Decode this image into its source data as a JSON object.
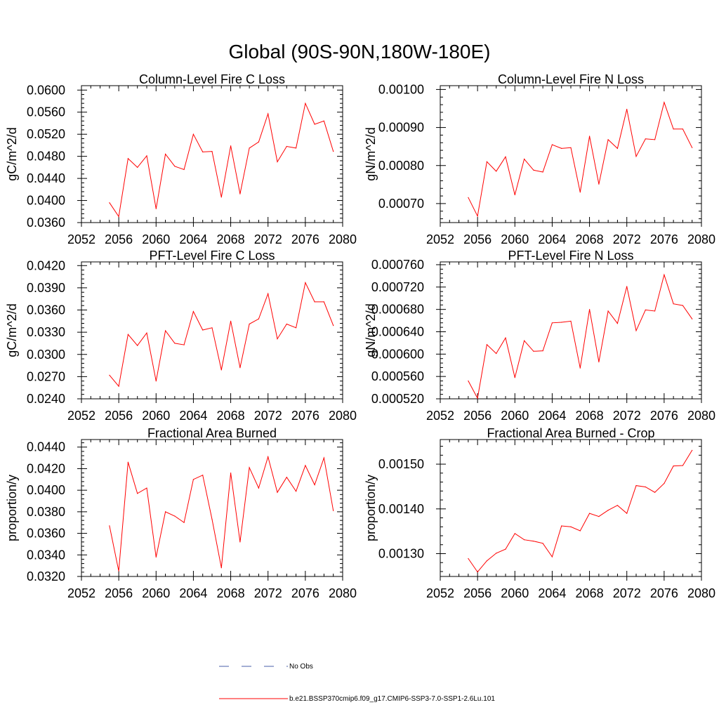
{
  "title": "Global (90S-90N,180W-180E)",
  "colors": {
    "series": "#ff0000",
    "obs": "#4a5ea8",
    "axis": "#000000"
  },
  "legend": {
    "obs_label": "No Obs",
    "model_label": "b.e21.BSSP370cmip6.f09_g17.CMIP6-SSP3-7.0-SSP1-2.6Lu.101"
  },
  "chart_data": [
    {
      "type": "line",
      "title": "Column-Level Fire C Loss",
      "ylabel": "gC/m^2/d",
      "xlim": [
        2052,
        2080
      ],
      "ylim": [
        0.036,
        0.0608
      ],
      "xticks": [
        2052,
        2056,
        2060,
        2064,
        2068,
        2072,
        2076,
        2080
      ],
      "yticks": [
        0.036,
        0.04,
        0.044,
        0.048,
        0.052,
        0.056,
        0.06
      ],
      "yticklabels": [
        "0.0360",
        "0.0400",
        "0.0440",
        "0.0480",
        "0.0520",
        "0.0560",
        "0.0600"
      ],
      "x": [
        2055,
        2056,
        2057,
        2058,
        2059,
        2060,
        2061,
        2062,
        2063,
        2064,
        2065,
        2066,
        2067,
        2068,
        2069,
        2070,
        2071,
        2072,
        2073,
        2074,
        2075,
        2076,
        2077,
        2078,
        2079
      ],
      "values": [
        0.0396,
        0.0371,
        0.0476,
        0.046,
        0.0481,
        0.0385,
        0.0484,
        0.0462,
        0.0456,
        0.052,
        0.0488,
        0.0489,
        0.0406,
        0.0499,
        0.0412,
        0.0495,
        0.0506,
        0.0557,
        0.047,
        0.0498,
        0.0495,
        0.0576,
        0.0538,
        0.0544,
        0.0489
      ]
    },
    {
      "type": "line",
      "title": "Column-Level Fire N Loss",
      "ylabel": "gN/m^2/d",
      "xlim": [
        2052,
        2080
      ],
      "ylim": [
        0.00065,
        0.00101
      ],
      "xticks": [
        2052,
        2056,
        2060,
        2064,
        2068,
        2072,
        2076,
        2080
      ],
      "yticks": [
        0.0007,
        0.0008,
        0.0009,
        0.001
      ],
      "yticklabels": [
        "0.00070",
        "0.00080",
        "0.00090",
        "0.00100"
      ],
      "x": [
        2055,
        2056,
        2057,
        2058,
        2059,
        2060,
        2061,
        2062,
        2063,
        2064,
        2065,
        2066,
        2067,
        2068,
        2069,
        2070,
        2071,
        2072,
        2073,
        2074,
        2075,
        2076,
        2077,
        2078,
        2079
      ],
      "values": [
        0.000716,
        0.000667,
        0.00081,
        0.000785,
        0.000823,
        0.000723,
        0.000817,
        0.000788,
        0.000783,
        0.000855,
        0.000845,
        0.000847,
        0.00073,
        0.000877,
        0.000751,
        0.000868,
        0.000845,
        0.000948,
        0.000824,
        0.00087,
        0.000868,
        0.000966,
        0.000896,
        0.000896,
        0.000847
      ]
    },
    {
      "type": "line",
      "title": "PFT-Level Fire C Loss",
      "ylabel": "gC/m^2/d",
      "xlim": [
        2052,
        2080
      ],
      "ylim": [
        0.024,
        0.0425
      ],
      "xticks": [
        2052,
        2056,
        2060,
        2064,
        2068,
        2072,
        2076,
        2080
      ],
      "yticks": [
        0.024,
        0.027,
        0.03,
        0.033,
        0.036,
        0.039,
        0.042
      ],
      "yticklabels": [
        "0.0240",
        "0.0270",
        "0.0300",
        "0.0330",
        "0.0360",
        "0.0390",
        "0.0420"
      ],
      "x": [
        2055,
        2056,
        2057,
        2058,
        2059,
        2060,
        2061,
        2062,
        2063,
        2064,
        2065,
        2066,
        2067,
        2068,
        2069,
        2070,
        2071,
        2072,
        2073,
        2074,
        2075,
        2076,
        2077,
        2078,
        2079
      ],
      "values": [
        0.0272,
        0.0257,
        0.0327,
        0.0312,
        0.0329,
        0.0264,
        0.0332,
        0.0315,
        0.0313,
        0.0358,
        0.0333,
        0.0336,
        0.0279,
        0.0345,
        0.0282,
        0.0341,
        0.0348,
        0.0382,
        0.0321,
        0.0341,
        0.0336,
        0.0397,
        0.0371,
        0.0371,
        0.0339
      ]
    },
    {
      "type": "line",
      "title": "PFT-Level Fire N Loss",
      "ylabel": "gN/m^2/d",
      "xlim": [
        2052,
        2080
      ],
      "ylim": [
        0.00052,
        0.000765
      ],
      "xticks": [
        2052,
        2056,
        2060,
        2064,
        2068,
        2072,
        2076,
        2080
      ],
      "yticks": [
        0.00052,
        0.00056,
        0.0006,
        0.00064,
        0.00068,
        0.00072,
        0.00076
      ],
      "yticklabels": [
        "0.000520",
        "0.000560",
        "0.000600",
        "0.000640",
        "0.000680",
        "0.000720",
        "0.000760"
      ],
      "x": [
        2055,
        2056,
        2057,
        2058,
        2059,
        2060,
        2061,
        2062,
        2063,
        2064,
        2065,
        2066,
        2067,
        2068,
        2069,
        2070,
        2071,
        2072,
        2073,
        2074,
        2075,
        2076,
        2077,
        2078,
        2079
      ],
      "values": [
        0.000552,
        0.000521,
        0.000617,
        0.000601,
        0.000629,
        0.000558,
        0.000624,
        0.000605,
        0.000606,
        0.000656,
        0.000657,
        0.000659,
        0.000575,
        0.00068,
        0.000586,
        0.000677,
        0.000655,
        0.000721,
        0.000642,
        0.000679,
        0.000677,
        0.000742,
        0.00069,
        0.000687,
        0.000663
      ]
    },
    {
      "type": "line",
      "title": "Fractional Area Burned",
      "ylabel": "proportion/y",
      "xlim": [
        2052,
        2080
      ],
      "ylim": [
        0.032,
        0.0447
      ],
      "xticks": [
        2052,
        2056,
        2060,
        2064,
        2068,
        2072,
        2076,
        2080
      ],
      "yticks": [
        0.032,
        0.034,
        0.036,
        0.038,
        0.04,
        0.042,
        0.044
      ],
      "yticklabels": [
        "0.0320",
        "0.0340",
        "0.0360",
        "0.0380",
        "0.0400",
        "0.0420",
        "0.0440"
      ],
      "x": [
        2055,
        2056,
        2057,
        2058,
        2059,
        2060,
        2061,
        2062,
        2063,
        2064,
        2065,
        2066,
        2067,
        2068,
        2069,
        2070,
        2071,
        2072,
        2073,
        2074,
        2075,
        2076,
        2077,
        2078,
        2079
      ],
      "values": [
        0.0367,
        0.0325,
        0.0426,
        0.0397,
        0.0402,
        0.0338,
        0.038,
        0.0376,
        0.037,
        0.041,
        0.0414,
        0.0373,
        0.0328,
        0.0416,
        0.0352,
        0.0421,
        0.0402,
        0.0431,
        0.0398,
        0.0412,
        0.0399,
        0.0423,
        0.0405,
        0.043,
        0.0381
      ]
    },
    {
      "type": "line",
      "title": "Fractional Area Burned - Crop",
      "ylabel": "proportion/y",
      "xlim": [
        2052,
        2080
      ],
      "ylim": [
        0.001249,
        0.001555
      ],
      "xticks": [
        2052,
        2056,
        2060,
        2064,
        2068,
        2072,
        2076,
        2080
      ],
      "yticks": [
        0.0013,
        0.0014,
        0.0015
      ],
      "yticklabels": [
        "0.00130",
        "0.00140",
        "0.00150"
      ],
      "x": [
        2055,
        2056,
        2057,
        2058,
        2059,
        2060,
        2061,
        2062,
        2063,
        2064,
        2065,
        2066,
        2067,
        2068,
        2069,
        2070,
        2071,
        2072,
        2073,
        2074,
        2075,
        2076,
        2077,
        2078,
        2079
      ],
      "values": [
        0.001289,
        0.001259,
        0.001284,
        0.001301,
        0.00131,
        0.001345,
        0.001331,
        0.001328,
        0.001323,
        0.001293,
        0.001362,
        0.00136,
        0.001351,
        0.00139,
        0.001383,
        0.001397,
        0.001408,
        0.00139,
        0.001452,
        0.001449,
        0.001437,
        0.001457,
        0.001496,
        0.001497,
        0.001531
      ]
    }
  ]
}
